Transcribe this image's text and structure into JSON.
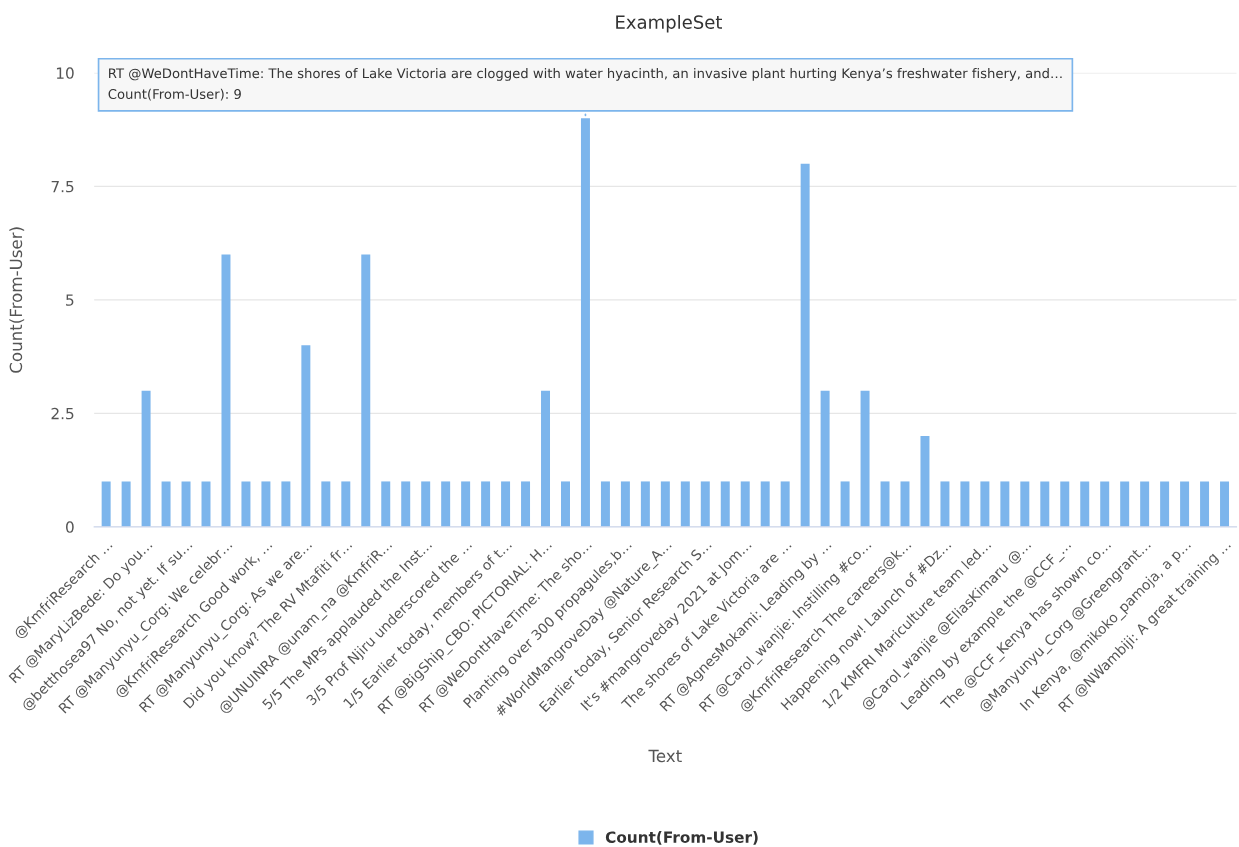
{
  "chart_data": {
    "type": "bar",
    "title": "ExampleSet",
    "xlabel": "Text",
    "ylabel": "Count(From-User)",
    "categories": [
      "@KmfriResearch …",
      null,
      "RT @MaryLizBede: Do you…",
      null,
      "@betthosea97 No, not yet. If su…",
      null,
      "RT @Manyunyu_Corg: We celebr…",
      null,
      "@KmfriResearch Good work, …",
      null,
      "RT @Manyunyu_Corg: As we are…",
      null,
      "Did you know? The RV Mtafiti fr…",
      null,
      "@UNUINRA @unam_na @KmfriR…",
      null,
      "5/5 The MPs applauded the Inst…",
      null,
      "3/5 Prof Njiru underscored the …",
      null,
      "1/5 Earlier today, members of t…",
      null,
      "RT @BigShip_CBO: PICTORIAL: H…",
      null,
      "RT @WeDontHaveTime: The sho…",
      null,
      "Planting over 300 propagules,b…",
      null,
      "#WorldMangroveDay @Nature_A…",
      null,
      "Earlier today, Senior Research S…",
      null,
      "It's #mangroveday 2021 at Jom…",
      null,
      "The shores of Lake Victoria are …",
      null,
      "RT @AgnesMokami: Leading by …",
      null,
      "RT @Carol_wanjie: Instilling #co…",
      null,
      "@KmfriResearch The careers@k…",
      null,
      "Happening now! Launch of #Dz…",
      null,
      "1/2 KMFRI Mariculture team led…",
      null,
      "@Carol_wanjie @EliasKimaru @…",
      null,
      "Leading by example the @CCF_…",
      null,
      "The @CCF_Kenya has shown co…",
      null,
      "@Manyunyu_Corg @Greengrant…",
      null,
      "In Kenya, @mikoko_pamoja, a p…",
      null,
      "RT @NWambiji: A great training …"
    ],
    "series": [
      {
        "name": "Count(From-User)",
        "color": "#7cb5ec",
        "values": [
          1,
          1,
          3,
          1,
          1,
          1,
          6,
          1,
          1,
          1,
          4,
          1,
          1,
          6,
          1,
          1,
          1,
          1,
          1,
          1,
          1,
          1,
          3,
          1,
          9,
          1,
          1,
          1,
          1,
          1,
          1,
          1,
          1,
          1,
          1,
          8,
          3,
          1,
          3,
          1,
          1,
          2,
          1,
          1,
          1,
          1,
          1,
          1,
          1,
          1,
          1,
          1,
          1,
          1,
          1,
          1,
          1
        ]
      }
    ],
    "ylim": [
      0,
      10
    ],
    "yticks": [
      0,
      2.5,
      5,
      7.5,
      10
    ],
    "grid": "y",
    "legend": "bottom",
    "annotations": [
      {
        "text": "RT @WeDontHaveTime: The shores of Lake Victoria are clogged with water hyacinth, an invasive plant hurting Kenya’s freshwater fishery, and…\nCount(From-User): 9",
        "x": "RT @WeDontHaveTime: The sho…",
        "y": 9
      }
    ]
  }
}
